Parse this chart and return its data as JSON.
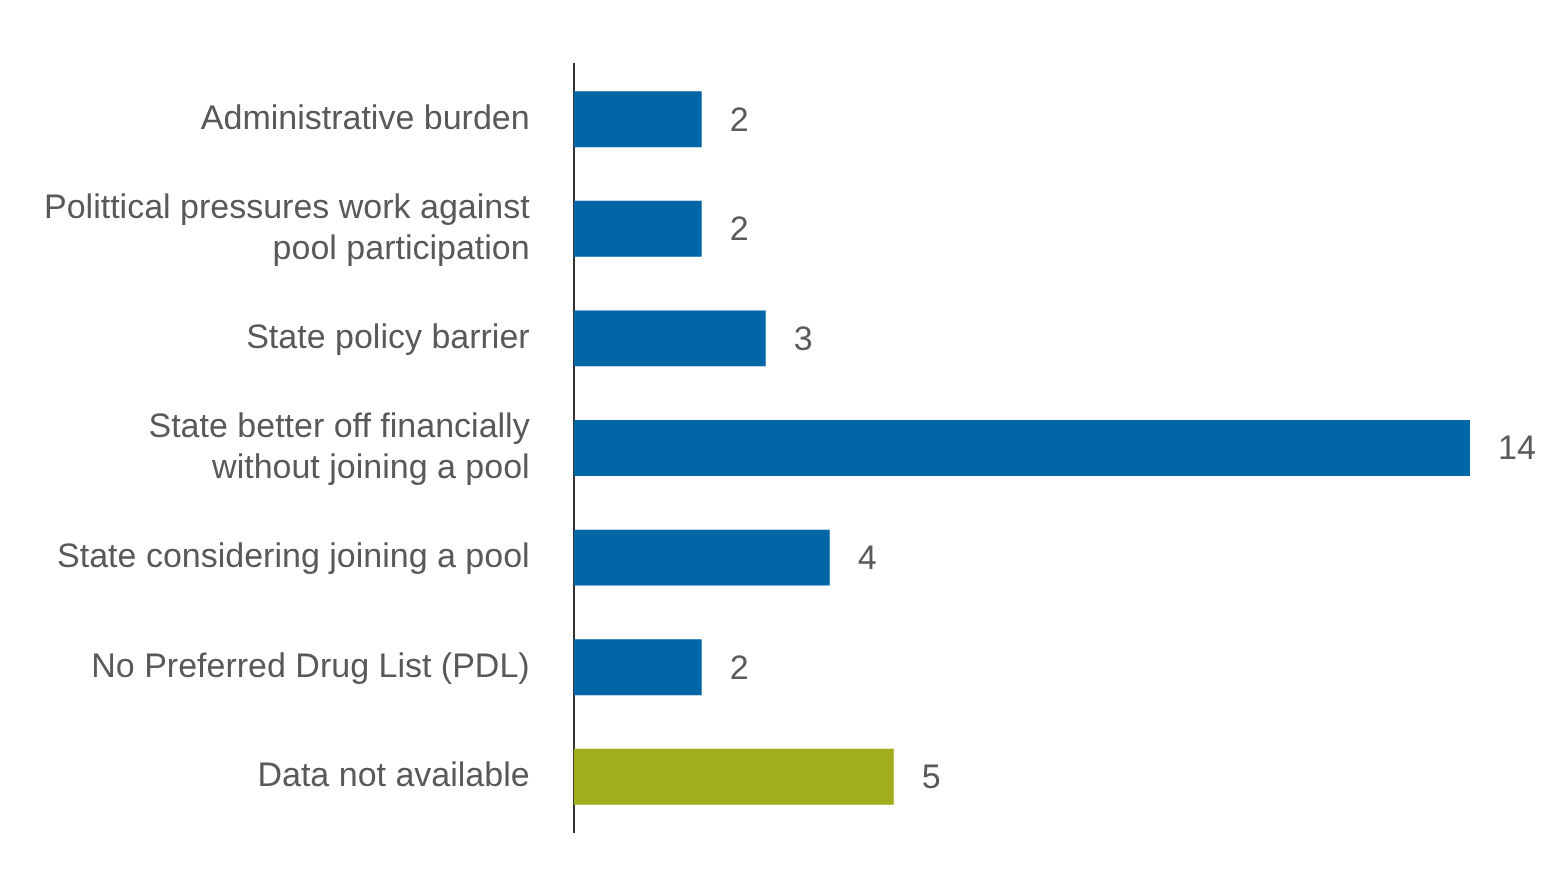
{
  "chart_data": {
    "type": "bar",
    "orientation": "horizontal",
    "categories": [
      "Administrative burden",
      "Polittical pressures work against pool participation",
      "State policy barrier",
      "State better off financially without joining a pool",
      "State considering joining a pool",
      "No Preferred Drug List (PDL)",
      "Data not available"
    ],
    "values": [
      2,
      2,
      3,
      14,
      4,
      2,
      5
    ],
    "colors": [
      "#0066a6",
      "#0066a6",
      "#0066a6",
      "#0066a6",
      "#0066a6",
      "#0066a6",
      "#a2ad1c"
    ],
    "data_labels": true,
    "legend": false
  }
}
